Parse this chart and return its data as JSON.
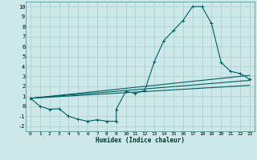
{
  "xlabel": "Humidex (Indice chaleur)",
  "xlim": [
    -0.5,
    23.5
  ],
  "ylim": [
    -2.5,
    10.5
  ],
  "xticks": [
    0,
    1,
    2,
    3,
    4,
    5,
    6,
    7,
    8,
    9,
    10,
    11,
    12,
    13,
    14,
    15,
    16,
    17,
    18,
    19,
    20,
    21,
    22,
    23
  ],
  "yticks": [
    -2,
    -1,
    0,
    1,
    2,
    3,
    4,
    5,
    6,
    7,
    8,
    9,
    10
  ],
  "bg_color": "#cce8e8",
  "grid_color": "#aacccc",
  "line_color": "#006060",
  "line1_x": [
    0,
    1,
    2,
    3,
    4,
    5,
    6,
    7,
    8,
    9,
    9,
    10,
    11,
    12,
    13,
    14,
    15,
    16,
    17,
    18,
    19,
    20,
    21,
    22,
    23
  ],
  "line1_y": [
    0.8,
    0.0,
    -0.3,
    -0.25,
    -1.0,
    -1.3,
    -1.5,
    -1.35,
    -1.5,
    -1.5,
    -0.3,
    1.5,
    1.3,
    1.6,
    4.5,
    6.6,
    7.6,
    8.6,
    10.0,
    10.0,
    8.3,
    4.4,
    3.5,
    3.3,
    2.7
  ],
  "line2_x": [
    0,
    23
  ],
  "line2_y": [
    0.8,
    2.6
  ],
  "line3_x": [
    0,
    23
  ],
  "line3_y": [
    0.8,
    2.1
  ],
  "line4_x": [
    0,
    23
  ],
  "line4_y": [
    0.8,
    3.1
  ]
}
